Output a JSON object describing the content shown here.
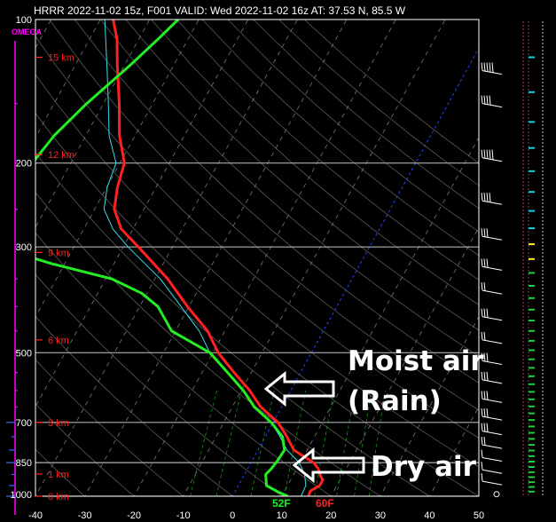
{
  "header": {
    "title": "HRRR 2022-11-02 15z, F001  VALID: Wed 2022-11-02 16z  AT: 37.53 N, 85.5 W"
  },
  "chart_data": {
    "type": "line",
    "title": "HRRR 2022-11-02 15z, F001  VALID: Wed 2022-11-02 16z  AT: 37.53 N, 85.5 W",
    "xlabel": "",
    "ylabel": "",
    "x_unit": "degC",
    "xlim": [
      -40,
      50
    ],
    "ylim": [
      1000,
      100
    ],
    "y_scale": "log",
    "skewed": true,
    "x_ticks": [
      -40,
      -30,
      -20,
      -10,
      0,
      10,
      20,
      30,
      40,
      50
    ],
    "pressure_ticks": [
      {
        "p": 100,
        "label": "100"
      },
      {
        "p": 200,
        "label": "200"
      },
      {
        "p": 300,
        "label": "300"
      },
      {
        "p": 500,
        "label": "500"
      },
      {
        "p": 700,
        "label": "700"
      },
      {
        "p": 850,
        "label": "850"
      },
      {
        "p": 1000,
        "label": "1000"
      }
    ],
    "height_labels": [
      {
        "p": 120,
        "label": "15 km"
      },
      {
        "p": 192,
        "label": "12 km"
      },
      {
        "p": 308,
        "label": "9 km"
      },
      {
        "p": 470,
        "label": "6 km"
      },
      {
        "p": 700,
        "label": "3 km"
      },
      {
        "p": 898,
        "label": "1 km"
      },
      {
        "p": 1000,
        "label": "0 km"
      }
    ],
    "omega_label": "OMEGA",
    "grid": true,
    "series": [
      {
        "key": "temperature",
        "color": "#ff2020",
        "points": [
          {
            "p": 1000,
            "t": 15.4
          },
          {
            "p": 975,
            "t": 15.2
          },
          {
            "p": 950,
            "t": 16.5
          },
          {
            "p": 925,
            "t": 16.5
          },
          {
            "p": 900,
            "t": 15.3
          },
          {
            "p": 875,
            "t": 14.3
          },
          {
            "p": 850,
            "t": 12.7
          },
          {
            "p": 800,
            "t": 7.3
          },
          {
            "p": 750,
            "t": 4.4
          },
          {
            "p": 700,
            "t": 1.0
          },
          {
            "p": 650,
            "t": -4.2
          },
          {
            "p": 600,
            "t": -8.3
          },
          {
            "p": 550,
            "t": -13.5
          },
          {
            "p": 500,
            "t": -18.9
          },
          {
            "p": 450,
            "t": -23.5
          },
          {
            "p": 400,
            "t": -30.3
          },
          {
            "p": 350,
            "t": -37.4
          },
          {
            "p": 300,
            "t": -46.9
          },
          {
            "p": 275,
            "t": -52.4
          },
          {
            "p": 250,
            "t": -56.0
          },
          {
            "p": 225,
            "t": -57.8
          },
          {
            "p": 200,
            "t": -59.1
          },
          {
            "p": 175,
            "t": -63.2
          },
          {
            "p": 150,
            "t": -66.8
          },
          {
            "p": 125,
            "t": -71.4
          },
          {
            "p": 110,
            "t": -74.4
          },
          {
            "p": 100,
            "t": -77.4
          }
        ]
      },
      {
        "key": "temperature-light",
        "color": "#33ddee",
        "points": [
          {
            "p": 1000,
            "t": 13.9
          },
          {
            "p": 950,
            "t": 13.7
          },
          {
            "p": 900,
            "t": 12.2
          },
          {
            "p": 850,
            "t": 9.8
          },
          {
            "p": 800,
            "t": 5.9
          },
          {
            "p": 750,
            "t": 3.0
          },
          {
            "p": 700,
            "t": -0.4
          },
          {
            "p": 650,
            "t": -5.5
          },
          {
            "p": 600,
            "t": -9.6
          },
          {
            "p": 550,
            "t": -14.8
          },
          {
            "p": 500,
            "t": -20.6
          },
          {
            "p": 450,
            "t": -25.2
          },
          {
            "p": 400,
            "t": -31.6
          },
          {
            "p": 350,
            "t": -38.9
          },
          {
            "p": 300,
            "t": -49.0
          },
          {
            "p": 275,
            "t": -54.1
          },
          {
            "p": 250,
            "t": -58.1
          },
          {
            "p": 225,
            "t": -59.9
          },
          {
            "p": 200,
            "t": -60.8
          },
          {
            "p": 175,
            "t": -65.3
          },
          {
            "p": 150,
            "t": -69.0
          },
          {
            "p": 125,
            "t": -73.5
          },
          {
            "p": 100,
            "t": -79.1
          }
        ]
      },
      {
        "key": "dewpoint",
        "color": "#22ee22",
        "points": [
          {
            "p": 1000,
            "t": 11.2
          },
          {
            "p": 975,
            "t": 8.3
          },
          {
            "p": 950,
            "t": 5.7
          },
          {
            "p": 900,
            "t": 4.3
          },
          {
            "p": 875,
            "t": 4.8
          },
          {
            "p": 850,
            "t": 5.1
          },
          {
            "p": 800,
            "t": 5.4
          },
          {
            "p": 750,
            "t": 3.5
          },
          {
            "p": 700,
            "t": -0.4
          },
          {
            "p": 650,
            "t": -5.5
          },
          {
            "p": 600,
            "t": -9.6
          },
          {
            "p": 550,
            "t": -14.8
          },
          {
            "p": 500,
            "t": -20.6
          },
          {
            "p": 450,
            "t": -30.8
          },
          {
            "p": 400,
            "t": -36.3
          },
          {
            "p": 375,
            "t": -41.1
          },
          {
            "p": 350,
            "t": -48.7
          },
          {
            "p": 325,
            "t": -62.7
          },
          {
            "p": 300,
            "t": -75.8
          },
          {
            "p": 275,
            "t": -81.9
          },
          {
            "p": 250,
            "t": -80.3
          },
          {
            "p": 225,
            "t": -79.3
          },
          {
            "p": 200,
            "t": -77.8
          },
          {
            "p": 175,
            "t": -76.4
          },
          {
            "p": 150,
            "t": -73.4
          },
          {
            "p": 125,
            "t": -68.9
          },
          {
            "p": 110,
            "t": -66.1
          },
          {
            "p": 100,
            "t": -64.2
          }
        ]
      }
    ],
    "surface_labels": {
      "dewpoint": "52F",
      "temperature": "60F"
    },
    "annotations": [
      {
        "text": "Moist air",
        "arrow_to": {
          "p": 630,
          "t": -9
        }
      },
      {
        "text": "(Rain)"
      },
      {
        "text": "Dry air",
        "arrow_to": {
          "p": 870,
          "t": 3
        }
      }
    ],
    "wind_barbs": [
      {
        "p": 128,
        "speed": 50
      },
      {
        "p": 150,
        "speed": 35
      },
      {
        "p": 195,
        "speed": 45
      },
      {
        "p": 240,
        "speed": 40
      },
      {
        "p": 285,
        "speed": 30
      },
      {
        "p": 330,
        "speed": 25
      },
      {
        "p": 370,
        "speed": 20
      },
      {
        "p": 420,
        "speed": 25
      },
      {
        "p": 470,
        "speed": 20
      },
      {
        "p": 520,
        "speed": 25
      },
      {
        "p": 570,
        "speed": 30
      },
      {
        "p": 625,
        "speed": 25
      },
      {
        "p": 680,
        "speed": 30
      },
      {
        "p": 730,
        "speed": 25
      },
      {
        "p": 780,
        "speed": 15
      },
      {
        "p": 830,
        "speed": 10
      },
      {
        "p": 880,
        "speed": 5
      },
      {
        "p": 930,
        "speed": 5
      },
      {
        "p": 990,
        "speed": 0
      }
    ]
  },
  "colors": {
    "background": "#000000",
    "temperature": "#ff2020",
    "dewpoint": "#22ee22",
    "virtual_temperature": "#33ddee",
    "isobar": "#b0b0b0",
    "isotherm_zero": "#2244ff",
    "omega": "#ff00ff"
  }
}
